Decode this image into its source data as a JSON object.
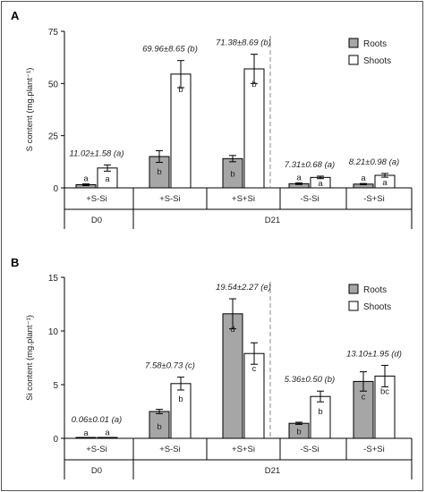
{
  "chart_data": [
    {
      "type": "bar",
      "panel_label": "A",
      "ylabel": "S content (mg.plant⁻¹)",
      "ylim": [
        0,
        75
      ],
      "yticks": [
        0,
        25,
        50,
        75
      ],
      "categories": [
        "+S-Si",
        "+S-Si",
        "+S+Si",
        "-S-Si",
        "-S+Si"
      ],
      "groups": [
        {
          "label": "D0",
          "start": 0,
          "end": 0
        },
        {
          "label": "D21",
          "start": 1,
          "end": 4
        }
      ],
      "divider_after_index": 2,
      "series": [
        {
          "name": "Roots",
          "fill": "#a6a6a6",
          "values": [
            1.5,
            15.0,
            14.0,
            2.0,
            1.8
          ],
          "errors": [
            0.4,
            2.8,
            1.5,
            0.4,
            0.3
          ],
          "letters": [
            "a",
            "b",
            "b",
            "a",
            "a"
          ]
        },
        {
          "name": "Shoots",
          "fill": "#ffffff",
          "values": [
            9.5,
            54.5,
            57.0,
            5.0,
            6.0
          ],
          "errors": [
            1.5,
            6.5,
            7.0,
            0.6,
            0.9
          ],
          "letters": [
            "a",
            "b",
            "b",
            "a",
            "a"
          ]
        }
      ],
      "totals": [
        "11.02±1.58 (a)",
        "69.96±8.65 (b)",
        "71.38±8.69 (b)",
        "7.31±0.68 (a)",
        "8.21±0.98 (a)"
      ],
      "legend_position": "top-right"
    },
    {
      "type": "bar",
      "panel_label": "B",
      "ylabel": "Si content (mg.plant⁻¹)",
      "ylim": [
        0,
        15
      ],
      "yticks": [
        0,
        5,
        10,
        15
      ],
      "categories": [
        "+S-Si",
        "+S-Si",
        "+S+Si",
        "-S-Si",
        "-S+Si"
      ],
      "groups": [
        {
          "label": "D0",
          "start": 0,
          "end": 0
        },
        {
          "label": "D21",
          "start": 1,
          "end": 4
        }
      ],
      "divider_after_index": 2,
      "series": [
        {
          "name": "Roots",
          "fill": "#a6a6a6",
          "values": [
            0.02,
            2.5,
            11.6,
            1.4,
            5.3
          ],
          "errors": [
            0.0,
            0.2,
            1.4,
            0.1,
            0.9
          ],
          "letters": [
            "a",
            "b",
            "d",
            "b",
            "c"
          ]
        },
        {
          "name": "Shoots",
          "fill": "#ffffff",
          "values": [
            0.03,
            5.1,
            7.9,
            3.9,
            5.8
          ],
          "errors": [
            0.0,
            0.6,
            1.0,
            0.5,
            1.0
          ],
          "letters": [
            "a",
            "b",
            "c",
            "b",
            "bc"
          ]
        }
      ],
      "totals": [
        "0.06±0.01 (a)",
        "7.58±0.73 (c)",
        "19.54±2.27 (e)",
        "5.36±0.50 (b)",
        "13.10±1.95 (d)"
      ],
      "legend_position": "top-right"
    }
  ]
}
